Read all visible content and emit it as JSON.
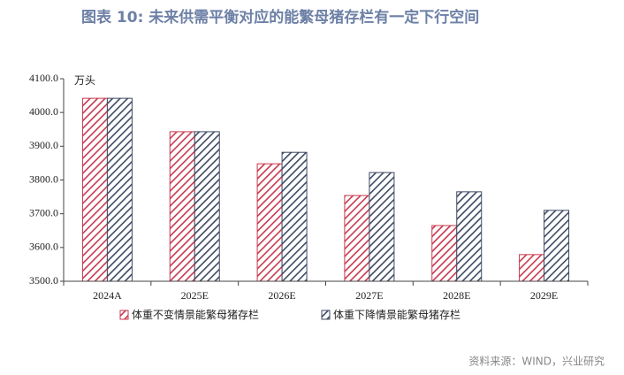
{
  "chart_data": {
    "type": "bar",
    "title": "图表 10: 未来供需平衡对应的能繁母猪存栏有一定下行空间",
    "y_label": "万头",
    "source": "资料来源：WIND，兴业研究",
    "categories": [
      "2024A",
      "2025E",
      "2026E",
      "2027E",
      "2028E",
      "2029E"
    ],
    "series": [
      {
        "name": "体重不变情景能繁母猪存栏",
        "color": "#c8384e",
        "values": [
          4042,
          3943,
          3848,
          3754,
          3665,
          3579
        ]
      },
      {
        "name": "体重下降情景能繁母猪存栏",
        "color": "#3d4a63",
        "values": [
          4042,
          3943,
          3882,
          3822,
          3765,
          3710
        ]
      }
    ],
    "ylim": [
      3500,
      4100
    ],
    "yticks": [
      {
        "value": 3500,
        "label": "3500.0"
      },
      {
        "value": 3600,
        "label": "3600.0"
      },
      {
        "value": 3700,
        "label": "3700.0"
      },
      {
        "value": 3800,
        "label": "3800.0"
      },
      {
        "value": 3900,
        "label": "3900.0"
      },
      {
        "value": 4000,
        "label": "4000.0"
      },
      {
        "value": 4100,
        "label": "4100.0"
      }
    ]
  }
}
